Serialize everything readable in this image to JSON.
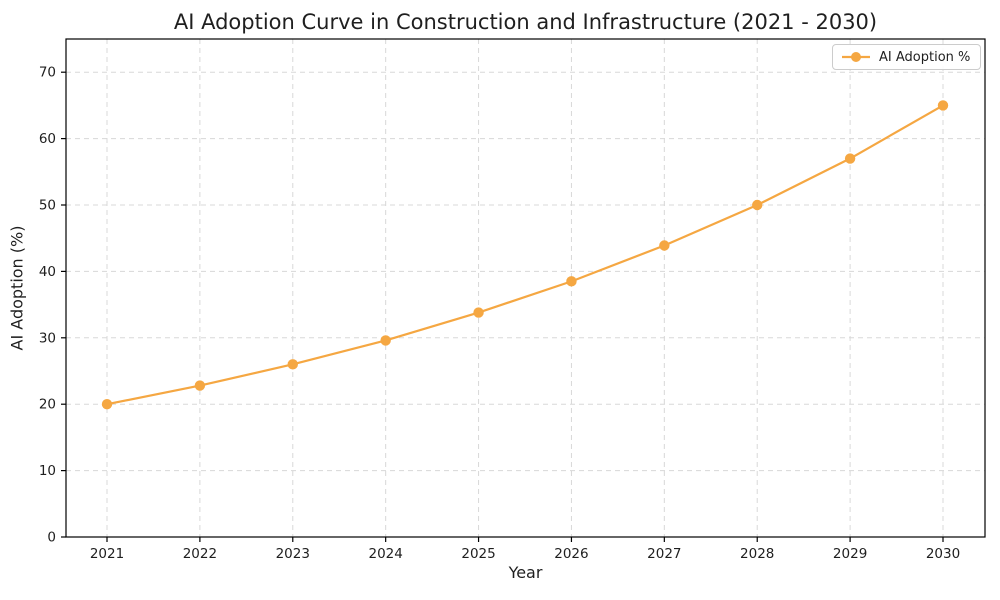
{
  "title": "AI Adoption Curve in Construction and Infrastructure (2021 - 2030)",
  "legend": {
    "position": "top-right",
    "entries": [
      "AI Adoption %"
    ]
  },
  "chart_data": {
    "type": "line",
    "x": [
      2021,
      2022,
      2023,
      2024,
      2025,
      2026,
      2027,
      2028,
      2029,
      2030
    ],
    "series": [
      {
        "name": "AI Adoption %",
        "values": [
          20.0,
          22.8,
          26.0,
          29.6,
          33.8,
          38.5,
          43.9,
          50.0,
          57.0,
          65.0
        ],
        "color": "#F5A742",
        "marker": "circle"
      }
    ],
    "title": "AI Adoption Curve in Construction and Infrastructure (2021 - 2030)",
    "xlabel": "Year",
    "ylabel": "AI Adoption (%)",
    "ylim": [
      0,
      75
    ],
    "yticks": [
      0,
      10,
      20,
      30,
      40,
      50,
      60,
      70
    ],
    "grid": true,
    "grid_style": "dashed",
    "grid_color": "#d8d8d8",
    "spine_color": "#000000",
    "background_color": "#ffffff"
  }
}
